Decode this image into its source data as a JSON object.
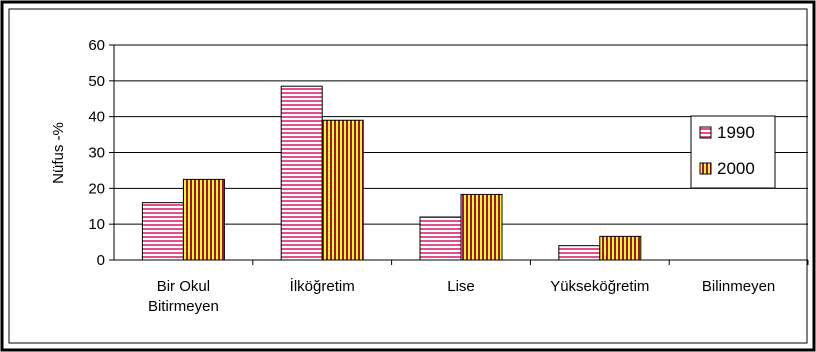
{
  "chart_data": {
    "type": "bar",
    "title": "",
    "xlabel": "",
    "ylabel": "Nüfus -%",
    "ylim": [
      0,
      60
    ],
    "yticks": [
      0,
      10,
      20,
      30,
      40,
      50,
      60
    ],
    "grid": true,
    "legend_position": "right",
    "categories": [
      [
        "Bir Okul",
        "Bitirmeyen"
      ],
      [
        "İlköğretim"
      ],
      [
        "Lise"
      ],
      [
        "Yükseköğretim"
      ],
      [
        "Bilinmeyen"
      ]
    ],
    "series": [
      {
        "name": "1990",
        "values": [
          16,
          48.5,
          12,
          4,
          0
        ],
        "color": "#e0508a",
        "stripe": "#ffffff",
        "pattern": "horizontal-stripes"
      },
      {
        "name": "2000",
        "values": [
          22.5,
          39,
          18.3,
          6.6,
          0
        ],
        "color": "#ffff00",
        "stripe": "#9b1060",
        "pattern": "vertical-stripes"
      }
    ]
  }
}
